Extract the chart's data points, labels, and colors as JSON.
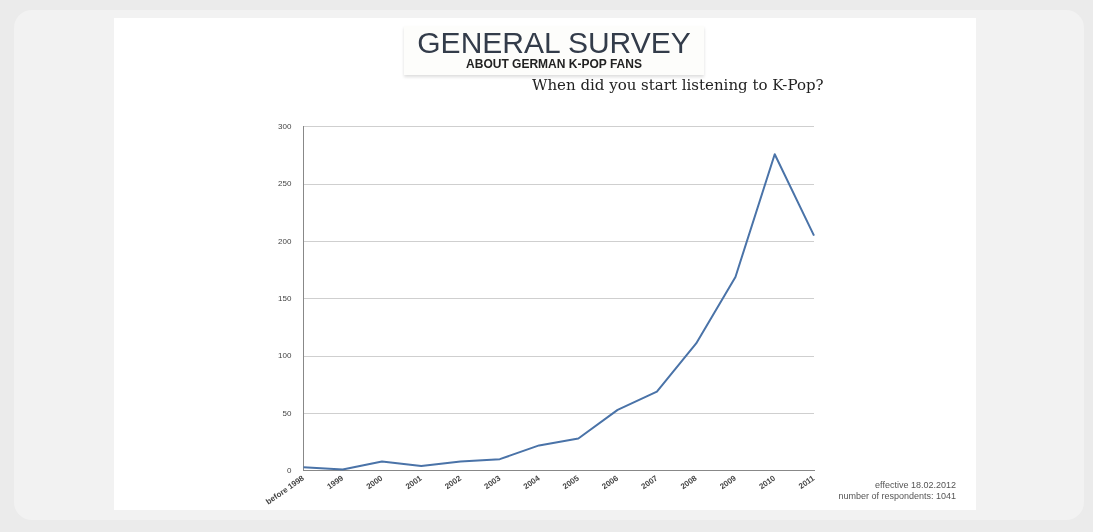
{
  "chart_data": {
    "type": "line",
    "title": "GENERAL SURVEY",
    "subtitle": "ABOUT GERMAN K-POP FANS",
    "annotations": [
      "When did you start listening to K-Pop?",
      "effective 18.02.2012",
      "number of respondents: 1041"
    ],
    "categories": [
      "before 1998",
      "1999",
      "2000",
      "2001",
      "2002",
      "2003",
      "2004",
      "2005",
      "2006",
      "2007",
      "2008",
      "2009",
      "2010",
      "2011"
    ],
    "series": [
      {
        "color": "#4a73a8",
        "values": [
          3,
          1,
          8,
          4,
          8,
          10,
          22,
          28,
          53,
          69,
          111,
          169,
          276,
          205
        ]
      }
    ],
    "ylim": [
      0,
      300
    ],
    "yticks": [
      0,
      50,
      100,
      150,
      200,
      250,
      300
    ],
    "grid": "y",
    "legend": false,
    "marker": "none",
    "line_style": "solid"
  }
}
